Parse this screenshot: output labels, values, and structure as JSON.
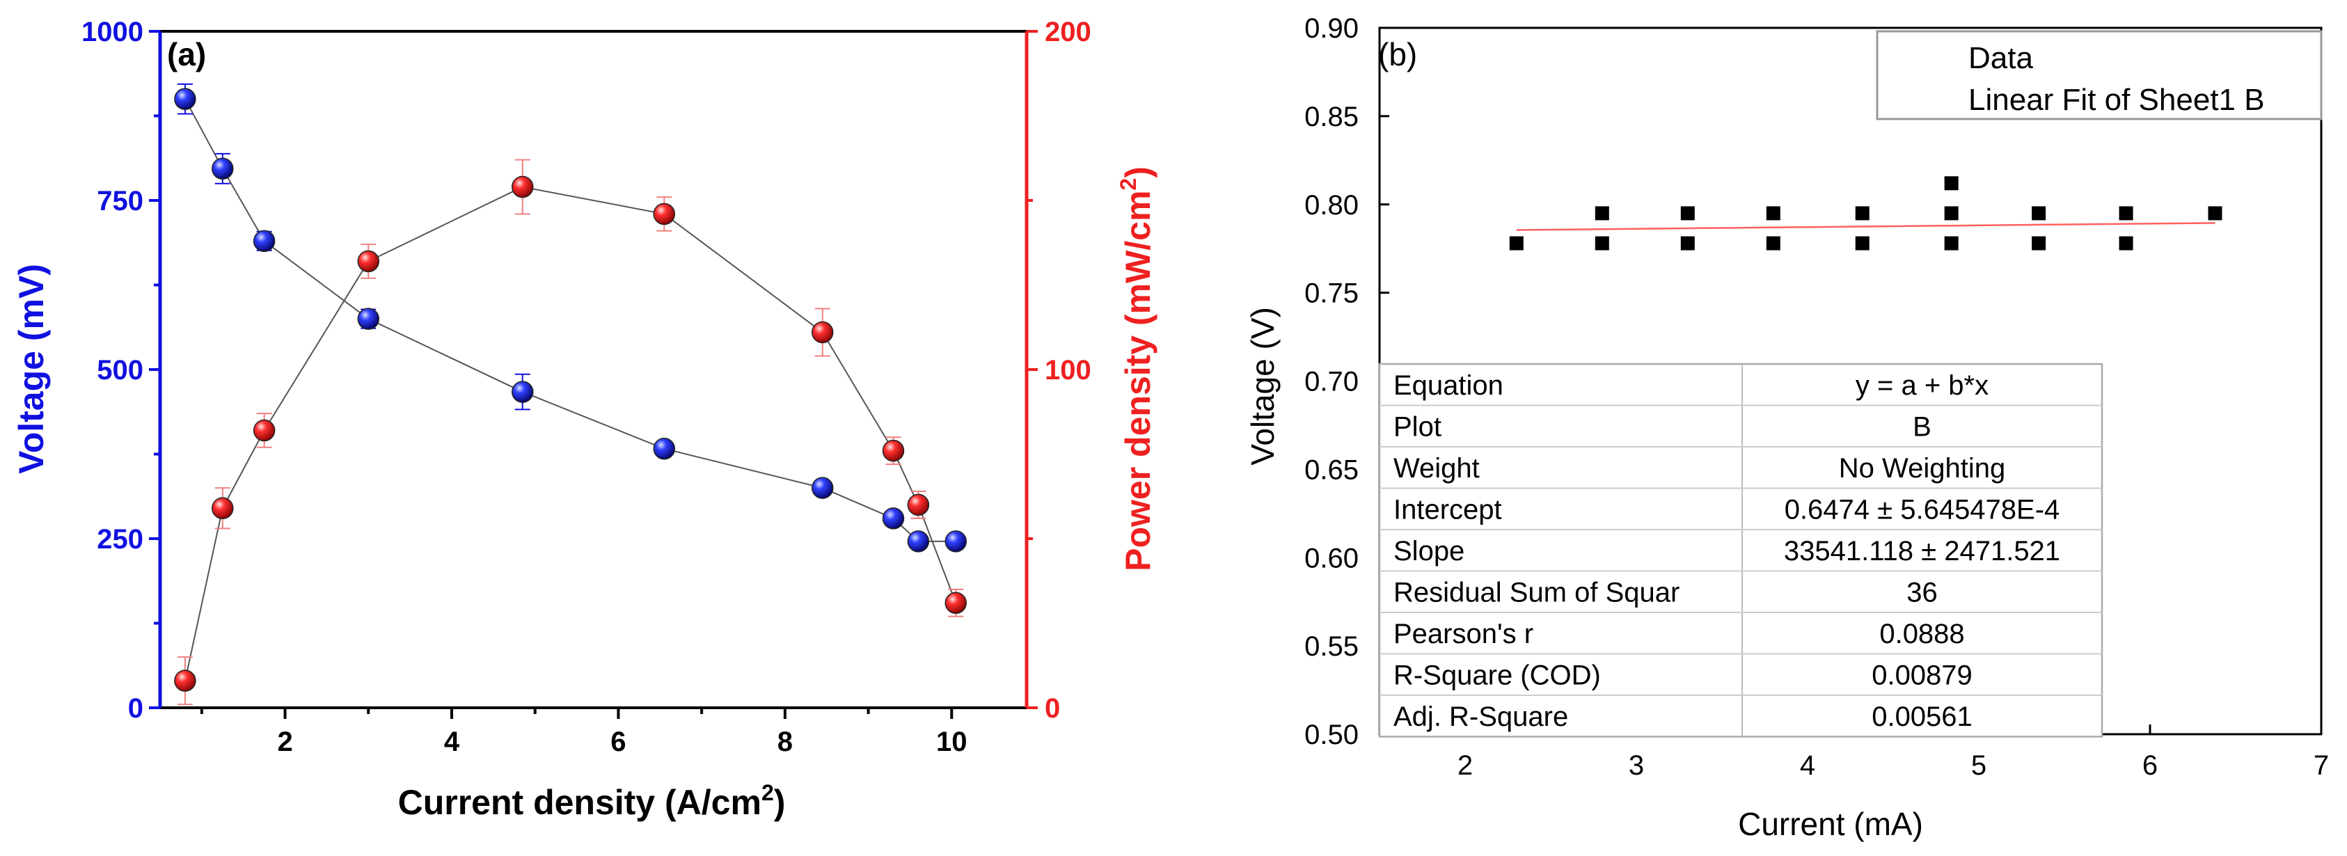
{
  "colors": {
    "voltage": "#1010e0",
    "power": "#ee2020",
    "linear_fit": "#ff6060",
    "connector": "#555555"
  },
  "chart_data": [
    {
      "type": "line",
      "panel_label": "(a)",
      "xlabel": "Current density (A/cm",
      "xlabel_sup": "2",
      "xlabel_close": ")",
      "ylabel_left": "Voltage (mV)",
      "ylabel_right": "Power density (mW/cm",
      "ylabel_right_sup": "2",
      "ylabel_right_close": ")",
      "xlim": [
        0.5,
        10.9
      ],
      "ylim_left": [
        0,
        1000
      ],
      "ylim_right": [
        0,
        200
      ],
      "xticks": [
        2,
        4,
        6,
        8,
        10
      ],
      "yticks_left": [
        0,
        250,
        500,
        750,
        1000
      ],
      "yticks_right": [
        0,
        100,
        200
      ],
      "series": [
        {
          "name": "Voltage",
          "axis": "left",
          "x": [
            0.8,
            1.25,
            1.75,
            3.0,
            4.85,
            6.55,
            8.45,
            9.3,
            9.6,
            10.05
          ],
          "y": [
            900,
            797,
            690,
            575,
            467,
            383,
            325,
            280,
            246,
            246
          ],
          "err": [
            22,
            22,
            14,
            14,
            26,
            0,
            0,
            0,
            0,
            0
          ]
        },
        {
          "name": "Power density",
          "axis": "right",
          "x": [
            0.8,
            1.25,
            1.75,
            3.0,
            4.85,
            6.55,
            8.45,
            9.3,
            9.6,
            10.05
          ],
          "y": [
            8,
            59,
            82,
            132,
            154,
            146,
            111,
            76,
            60,
            31
          ],
          "err": [
            7,
            6,
            5,
            5,
            8,
            5,
            7,
            4,
            4,
            4
          ]
        }
      ]
    },
    {
      "type": "scatter",
      "panel_label": "(b)",
      "xlabel": "Current (mA)",
      "ylabel": "Voltage (V)",
      "xlim": [
        1.5,
        7
      ],
      "ylim": [
        0.5,
        0.9
      ],
      "xticks": [
        2,
        3,
        4,
        5,
        6,
        7
      ],
      "yticks": [
        "0.50",
        "0.55",
        "0.60",
        "0.65",
        "0.70",
        "0.75",
        "0.80",
        "0.85",
        "0.90"
      ],
      "legend": [
        "Data",
        "Linear Fit of Sheet1 B"
      ],
      "legend_position": "top-right",
      "series": [
        {
          "name": "Data",
          "x": [
            2.3,
            2.8,
            2.8,
            3.3,
            3.3,
            3.8,
            3.8,
            4.32,
            4.32,
            4.84,
            4.84,
            4.84,
            5.35,
            5.35,
            5.86,
            5.86,
            6.38
          ],
          "y": [
            0.778,
            0.795,
            0.778,
            0.795,
            0.778,
            0.795,
            0.778,
            0.795,
            0.778,
            0.812,
            0.795,
            0.778,
            0.795,
            0.778,
            0.795,
            0.778,
            0.795
          ]
        }
      ],
      "fit_line": {
        "name": "Linear Fit of Sheet1 B",
        "x": [
          2.3,
          6.38
        ],
        "y": [
          0.7855,
          0.7895
        ]
      },
      "fit_table": [
        {
          "key": "Equation",
          "value": "y = a + b*x"
        },
        {
          "key": "Plot",
          "value": "B"
        },
        {
          "key": "Weight",
          "value": "No Weighting"
        },
        {
          "key": "Intercept",
          "value": "0.6474 ± 5.645478E-4"
        },
        {
          "key": "Slope",
          "value": "33541.118 ± 2471.521"
        },
        {
          "key": "Residual Sum of Squar",
          "value": "36"
        },
        {
          "key": "Pearson's r",
          "value": "0.0888"
        },
        {
          "key": "R-Square (COD)",
          "value": "0.00879"
        },
        {
          "key": "Adj. R-Square",
          "value": "0.00561"
        }
      ]
    }
  ]
}
